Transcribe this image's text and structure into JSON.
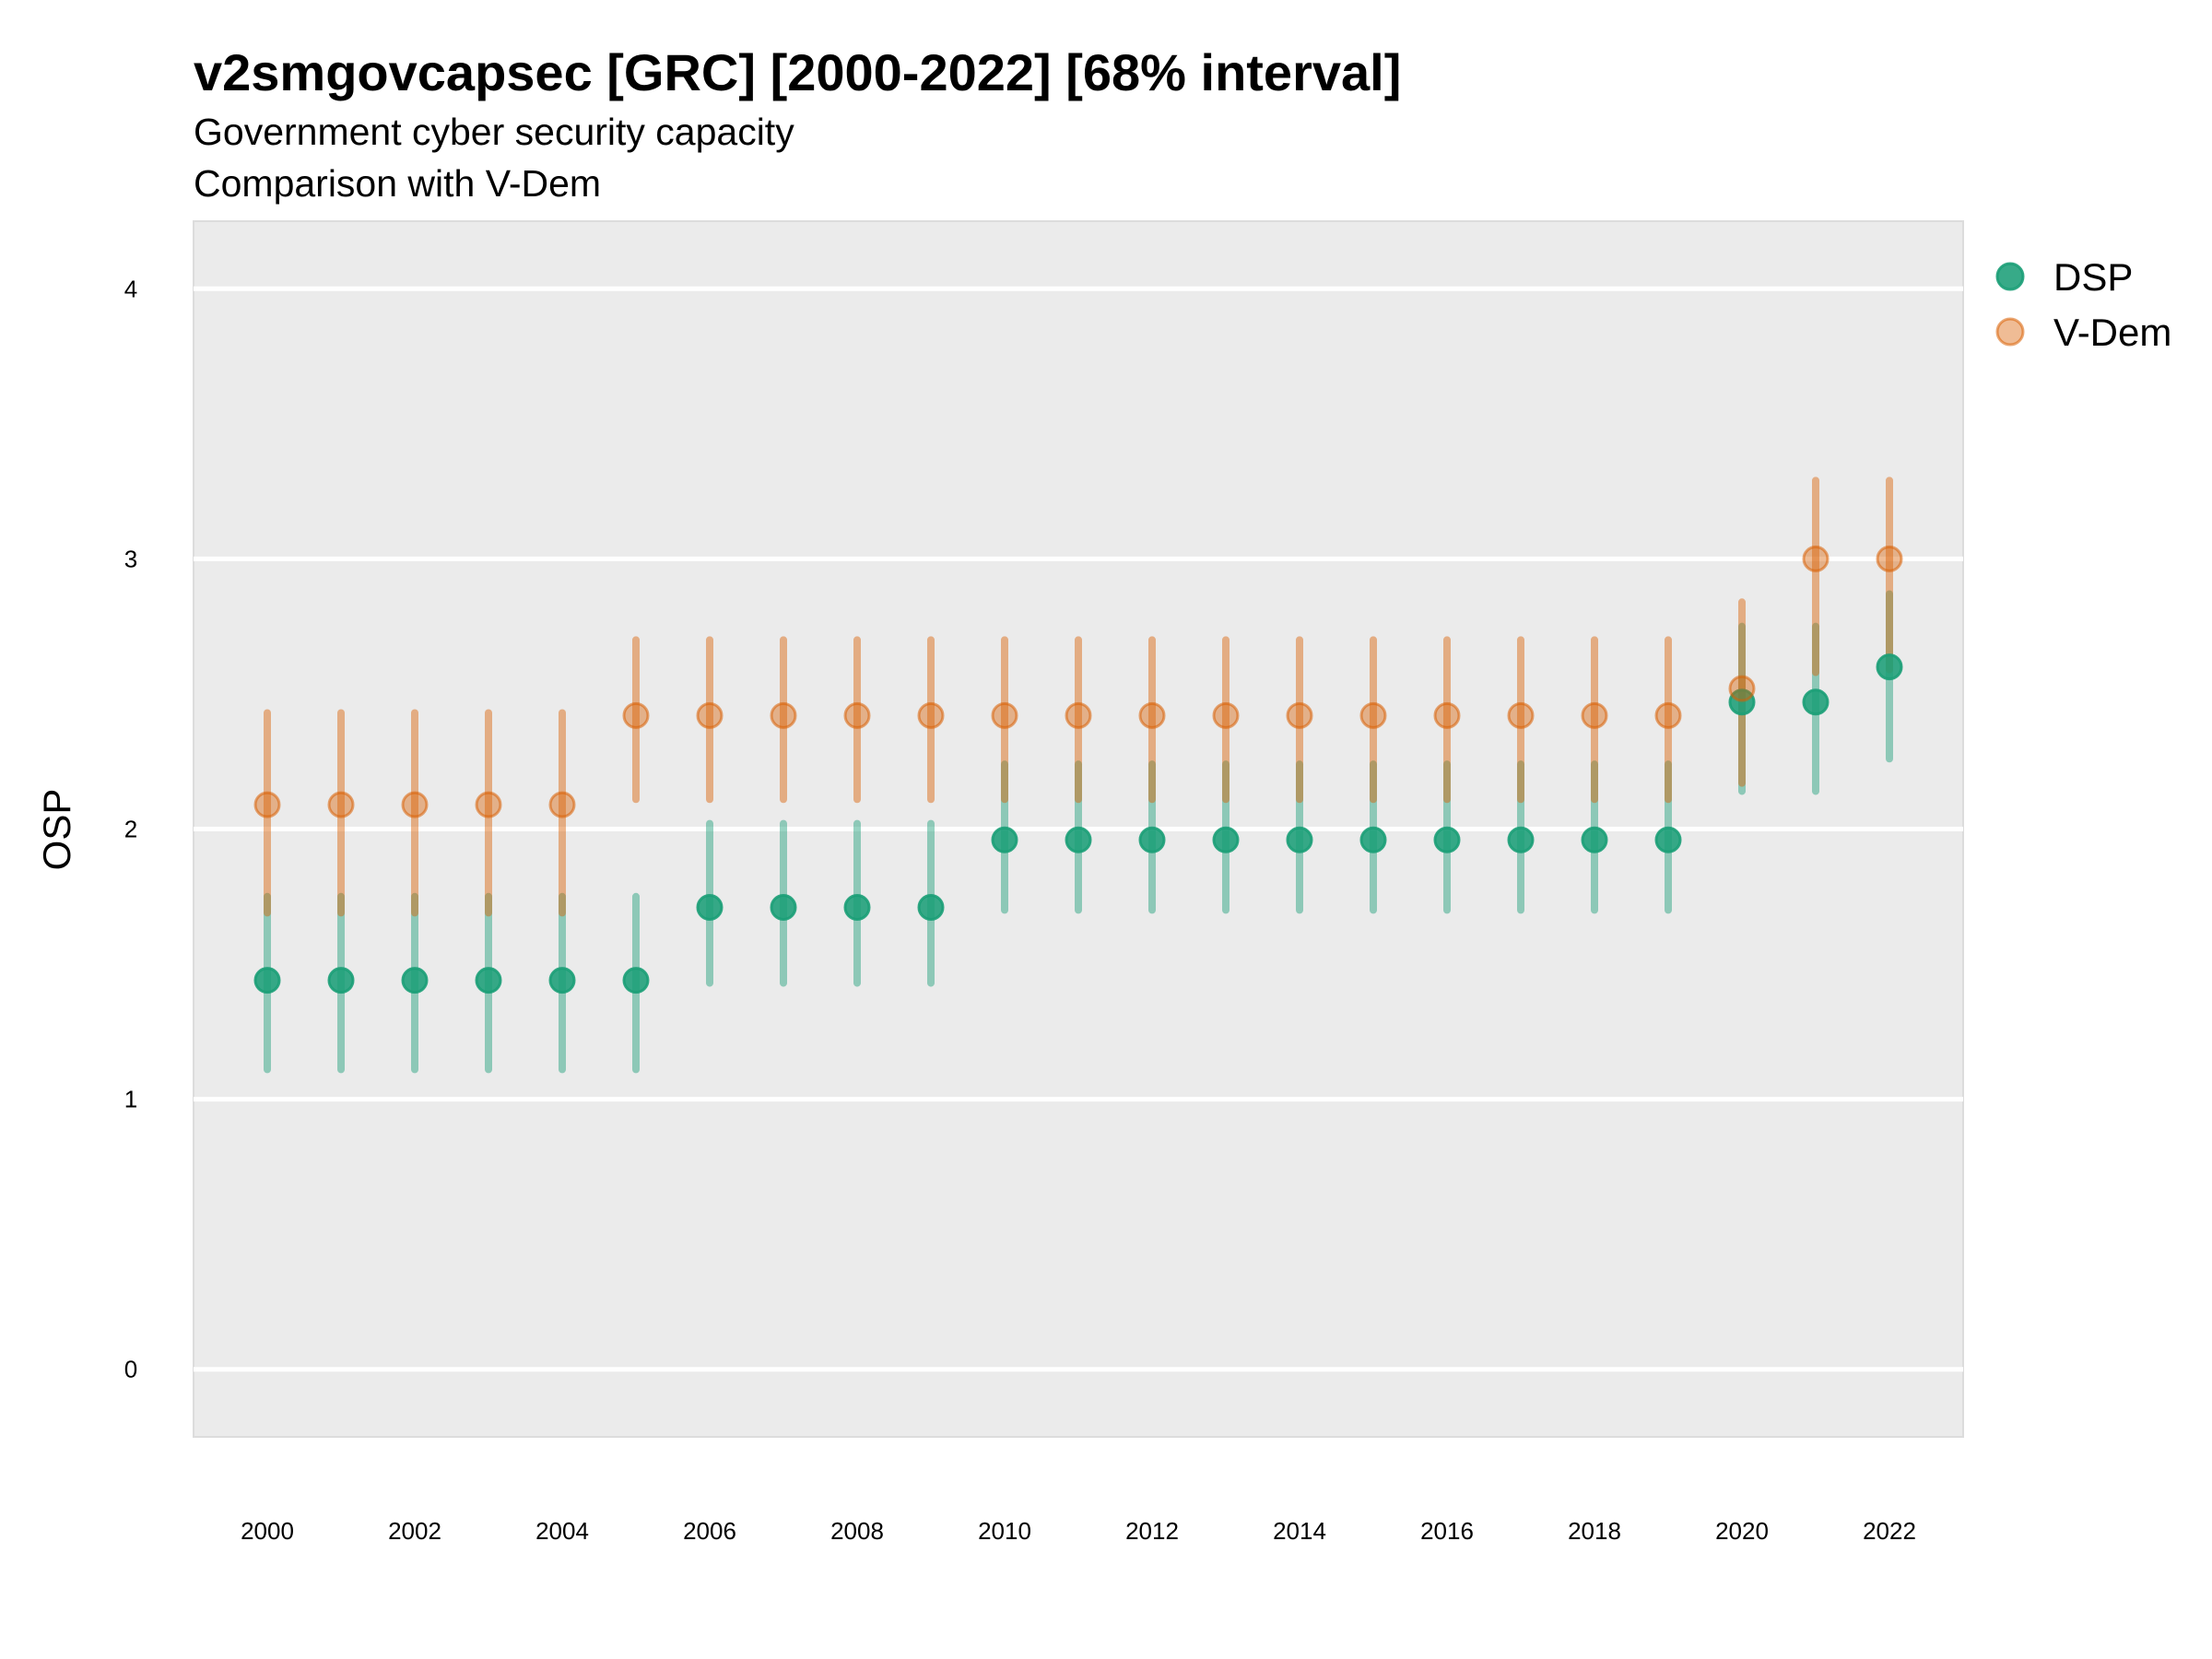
{
  "chart_data": {
    "type": "scatter",
    "title": "v2smgovcapsec [GRC] [2000-2022] [68% interval]",
    "subtitle": "Government cyber security capacity",
    "subtitle2": "Comparison with V-Dem",
    "xlabel": "",
    "ylabel": "OSP",
    "xlim": [
      1999,
      2023
    ],
    "ylim": [
      -0.25,
      4.25
    ],
    "grid": "horizontal-major",
    "legend_position": "right",
    "x_ticks": [
      2000,
      2002,
      2004,
      2006,
      2008,
      2010,
      2012,
      2014,
      2016,
      2018,
      2020,
      2022
    ],
    "y_ticks": [
      0,
      1,
      2,
      3,
      4
    ],
    "x": [
      2000,
      2001,
      2002,
      2003,
      2004,
      2005,
      2006,
      2007,
      2008,
      2009,
      2010,
      2011,
      2012,
      2013,
      2014,
      2015,
      2016,
      2017,
      2018,
      2019,
      2020,
      2021,
      2022
    ],
    "series": [
      {
        "name": "DSP",
        "color": "#1b9e77",
        "values": [
          1.44,
          1.44,
          1.44,
          1.44,
          1.44,
          1.44,
          1.71,
          1.71,
          1.71,
          1.71,
          1.96,
          1.96,
          1.96,
          1.96,
          1.96,
          1.96,
          1.96,
          1.96,
          1.96,
          1.96,
          2.47,
          2.47,
          2.6
        ],
        "lower": [
          1.11,
          1.11,
          1.11,
          1.11,
          1.11,
          1.11,
          1.43,
          1.43,
          1.43,
          1.43,
          1.7,
          1.7,
          1.7,
          1.7,
          1.7,
          1.7,
          1.7,
          1.7,
          1.7,
          1.7,
          2.14,
          2.14,
          2.26
        ],
        "upper": [
          1.75,
          1.75,
          1.75,
          1.75,
          1.75,
          1.75,
          2.02,
          2.02,
          2.02,
          2.02,
          2.24,
          2.24,
          2.24,
          2.24,
          2.24,
          2.24,
          2.24,
          2.24,
          2.24,
          2.24,
          2.75,
          2.75,
          2.87
        ]
      },
      {
        "name": "V-Dem",
        "color": "#d95f02",
        "values": [
          2.09,
          2.09,
          2.09,
          2.09,
          2.09,
          2.42,
          2.42,
          2.42,
          2.42,
          2.42,
          2.42,
          2.42,
          2.42,
          2.42,
          2.42,
          2.42,
          2.42,
          2.42,
          2.42,
          2.42,
          2.52,
          3.0,
          3.0
        ],
        "lower": [
          1.69,
          1.69,
          1.69,
          1.69,
          1.69,
          2.11,
          2.11,
          2.11,
          2.11,
          2.11,
          2.11,
          2.11,
          2.11,
          2.11,
          2.11,
          2.11,
          2.11,
          2.11,
          2.11,
          2.11,
          2.17,
          2.58,
          2.59
        ],
        "upper": [
          2.43,
          2.43,
          2.43,
          2.43,
          2.43,
          2.7,
          2.7,
          2.7,
          2.7,
          2.7,
          2.7,
          2.7,
          2.7,
          2.7,
          2.7,
          2.7,
          2.7,
          2.7,
          2.7,
          2.7,
          2.84,
          3.29,
          3.29
        ]
      }
    ]
  }
}
